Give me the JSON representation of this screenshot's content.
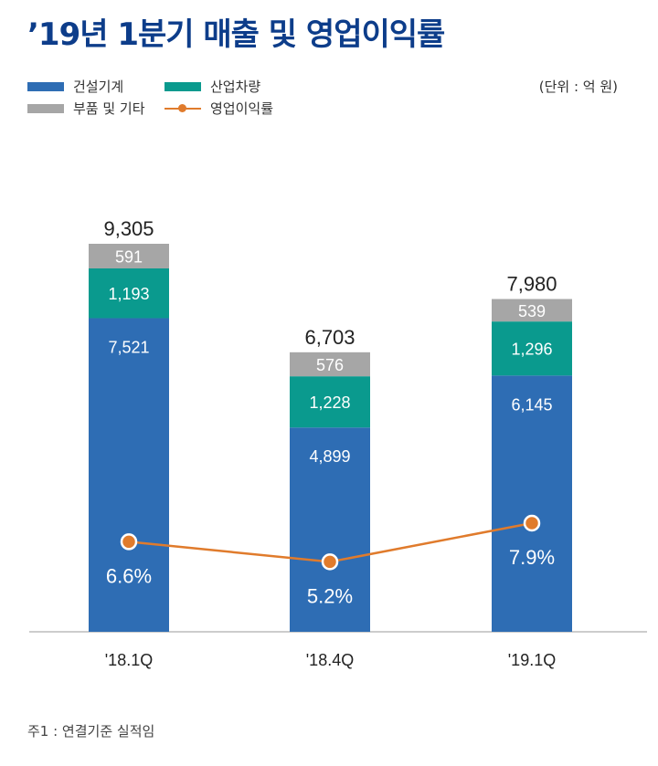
{
  "title": "’19년 1분기 매출 및 영업이익률",
  "unit": "(단위 : 억 원)",
  "footnote": "주1 : 연결기준 실적임",
  "legend": [
    {
      "label": "건설기계",
      "color": "#2e6db4",
      "kind": "bar"
    },
    {
      "label": "산업차량",
      "color": "#0a9a8e",
      "kind": "bar"
    },
    {
      "label": "부품 및 기타",
      "color": "#a6a6a6",
      "kind": "bar"
    },
    {
      "label": "영업이익률",
      "color": "#e07b2c",
      "kind": "line"
    }
  ],
  "chart_data": {
    "type": "bar",
    "stacked": true,
    "title": "’19년 1분기 매출 및 영업이익률",
    "categories": [
      "'18.1Q",
      "'18.4Q",
      "'19.1Q"
    ],
    "series": [
      {
        "name": "건설기계",
        "values": [
          7521,
          4899,
          6145
        ],
        "labels": [
          "7,521",
          "4,899",
          "6,145"
        ],
        "color": "#2e6db4"
      },
      {
        "name": "산업차량",
        "values": [
          1193,
          1228,
          1296
        ],
        "labels": [
          "1,193",
          "1,228",
          "1,296"
        ],
        "color": "#0a9a8e"
      },
      {
        "name": "부품 및 기타",
        "values": [
          591,
          576,
          539
        ],
        "labels": [
          "591",
          "576",
          "539"
        ],
        "color": "#a6a6a6"
      }
    ],
    "totals": [
      9305,
      6703,
      7980
    ],
    "total_labels": [
      "9,305",
      "6,703",
      "7,980"
    ],
    "line": {
      "name": "영업이익률",
      "values": [
        6.6,
        5.2,
        7.9
      ],
      "labels": [
        "6.6%",
        "5.2%",
        "7.9%"
      ],
      "color": "#e07b2c"
    },
    "ylim": [
      0,
      10000
    ],
    "grid": false,
    "legend_position": "top-left"
  }
}
